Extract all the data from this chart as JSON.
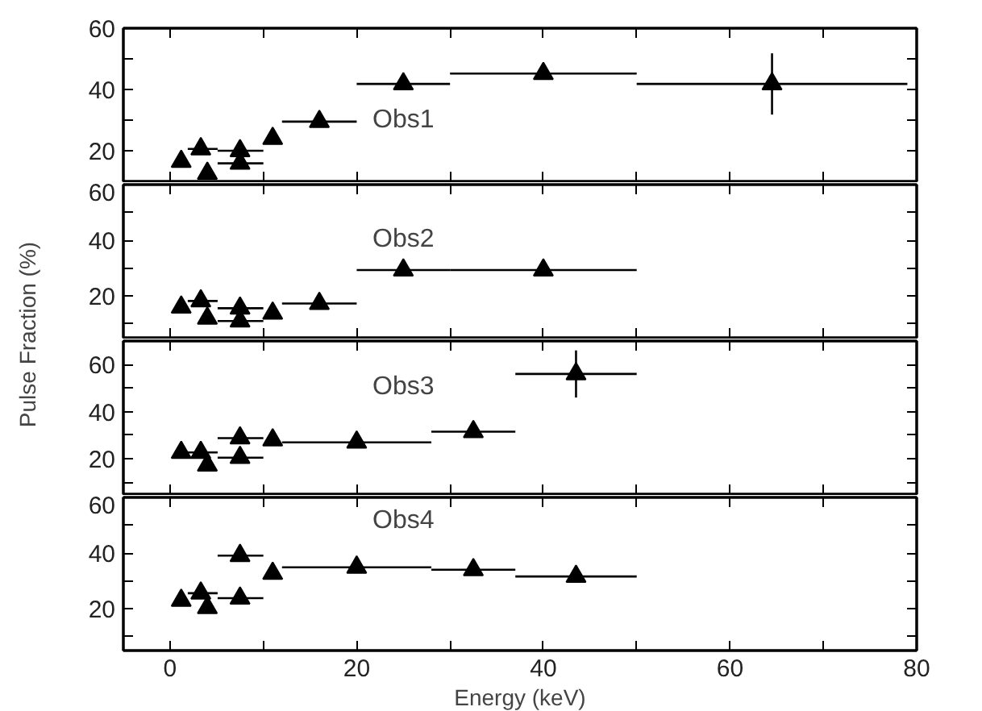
{
  "chart_data": [
    {
      "type": "scatter",
      "ylabel": "Pulse Fraction (%)",
      "annotations": [
        "Obs1"
      ],
      "marker": "triangle",
      "color": "#000000",
      "tick_labels": "y",
      "x": [
        1.2,
        3.3,
        4.0,
        7.5,
        7.5,
        11,
        16,
        25,
        40,
        64.5
      ],
      "values": [
        16.5,
        20.6,
        12.6,
        20,
        15.9,
        24,
        29.5,
        41.8,
        45.2,
        41.8
      ],
      "xerrors": [
        null,
        [
          1.9,
          5.1
        ],
        null,
        [
          5.1,
          10
        ],
        [
          5.1,
          10
        ],
        null,
        [
          12,
          20
        ],
        [
          20,
          30
        ],
        [
          30,
          50
        ],
        [
          50,
          79
        ]
      ],
      "errors": [
        null,
        null,
        null,
        null,
        null,
        null,
        null,
        null,
        null,
        10
      ],
      "xlim": [
        -5,
        80
      ],
      "xticks": [
        0,
        {
          "value": 10,
          "label": null
        },
        20,
        {
          "value": 30,
          "label": null
        },
        40,
        {
          "value": 50,
          "label": null
        },
        60,
        {
          "value": 70,
          "label": null
        },
        80
      ],
      "ylim": [
        10,
        60
      ],
      "yticks": [
        20,
        {
          "value": 30,
          "label": null
        },
        40,
        {
          "value": 50,
          "label": null
        },
        60
      ]
    },
    {
      "type": "scatter",
      "annotations": [
        "Obs2"
      ],
      "marker": "triangle",
      "color": "#000000",
      "tick_labels": "y",
      "x": [
        1.2,
        3.3,
        4.0,
        7.5,
        7.5,
        11,
        16,
        25,
        40
      ],
      "values": [
        16,
        18.2,
        12,
        15.6,
        11,
        13.8,
        17.3,
        29.3,
        29.3
      ],
      "xerrors": [
        null,
        [
          1.9,
          5.1
        ],
        null,
        [
          5.1,
          10
        ],
        [
          5.1,
          10
        ],
        null,
        [
          12,
          20
        ],
        [
          20,
          30
        ],
        [
          30,
          50
        ]
      ],
      "xlim": [
        -5,
        80
      ],
      "xticks": [
        0,
        {
          "value": 10,
          "label": null
        },
        20,
        {
          "value": 30,
          "label": null
        },
        40,
        {
          "value": 50,
          "label": null
        },
        60,
        {
          "value": 70,
          "label": null
        },
        80
      ],
      "ylim": [
        5,
        60
      ],
      "yticks": [
        {
          "value": 10,
          "label": null
        },
        20,
        {
          "value": 30,
          "label": null
        },
        40,
        {
          "value": 50,
          "label": null
        },
        60
      ]
    },
    {
      "type": "scatter",
      "annotations": [
        "Obs3"
      ],
      "marker": "triangle",
      "color": "#000000",
      "tick_labels": "y",
      "x": [
        1.2,
        3.3,
        4.0,
        7.5,
        7.5,
        11,
        20,
        32.5,
        43.5
      ],
      "values": [
        22.7,
        22.7,
        17.3,
        28.8,
        20.5,
        28,
        27,
        31.5,
        56
      ],
      "xerrors": [
        null,
        [
          1.9,
          5.1
        ],
        null,
        [
          5.1,
          10
        ],
        [
          5.1,
          10
        ],
        null,
        [
          12,
          28
        ],
        [
          28,
          37
        ],
        [
          37,
          50
        ]
      ],
      "errors": [
        null,
        null,
        null,
        null,
        null,
        null,
        null,
        null,
        10
      ],
      "xlim": [
        -5,
        80
      ],
      "xticks": [
        0,
        {
          "value": 10,
          "label": null
        },
        20,
        {
          "value": 30,
          "label": null
        },
        40,
        {
          "value": 50,
          "label": null
        },
        60,
        {
          "value": 70,
          "label": null
        },
        80
      ],
      "ylim": [
        5,
        70
      ],
      "yticks": [
        {
          "value": 10,
          "label": null
        },
        20,
        {
          "value": 30,
          "label": null
        },
        40,
        {
          "value": 50,
          "label": null
        },
        60
      ]
    },
    {
      "type": "scatter",
      "xlabel": "Energy (keV)",
      "annotations": [
        "Obs4"
      ],
      "marker": "triangle",
      "color": "#000000",
      "x": [
        1.2,
        3.3,
        4.0,
        7.5,
        7.5,
        11,
        20,
        32.5,
        43.5
      ],
      "values": [
        23,
        25.6,
        20.4,
        39.1,
        23.8,
        32.7,
        34.9,
        34,
        31.6
      ],
      "xerrors": [
        null,
        [
          1.9,
          5.1
        ],
        null,
        [
          5.1,
          10
        ],
        [
          5.1,
          10
        ],
        null,
        [
          12,
          28
        ],
        [
          28,
          37
        ],
        [
          37,
          50
        ]
      ],
      "xlim": [
        -5,
        80
      ],
      "xticks": [
        0,
        {
          "value": 10,
          "label": null
        },
        20,
        {
          "value": 30,
          "label": null
        },
        40,
        {
          "value": 50,
          "label": null
        },
        60,
        {
          "value": 70,
          "label": null
        },
        80
      ],
      "ylim": [
        5,
        60
      ],
      "yticks": [
        {
          "value": 10,
          "label": null
        },
        20,
        {
          "value": 30,
          "label": null
        },
        40,
        {
          "value": 50,
          "label": null
        },
        60
      ]
    }
  ]
}
